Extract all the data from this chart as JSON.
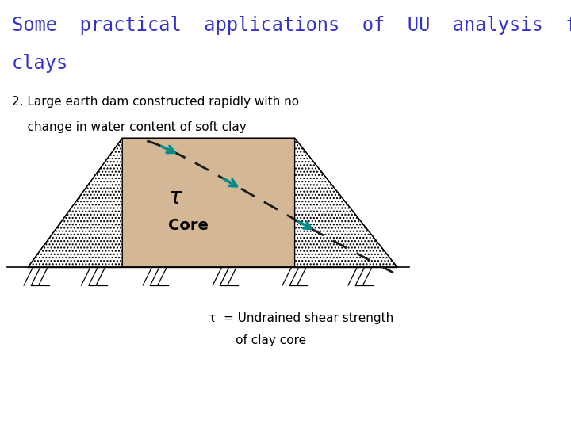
{
  "title_line1": "Some  practical  applications  of  UU  analysis  for",
  "title_line2": "clays",
  "title_color": "#3333cc",
  "title_fontsize": 17,
  "subtitle_line1": "2. Large earth dam constructed rapidly with no",
  "subtitle_line2": "    change in water content of soft clay",
  "subtitle_fontsize": 11,
  "bg_color": "#ffffff",
  "dam_fill_color": "#d4b896",
  "core_label": "Core",
  "tau_label": "τ",
  "legend_line1": "τ  = Undrained shear strength",
  "legend_line2": "       of clay core",
  "legend_fontsize": 11,
  "teal_color": "#008b8b",
  "dashed_color": "#1a1a1a"
}
